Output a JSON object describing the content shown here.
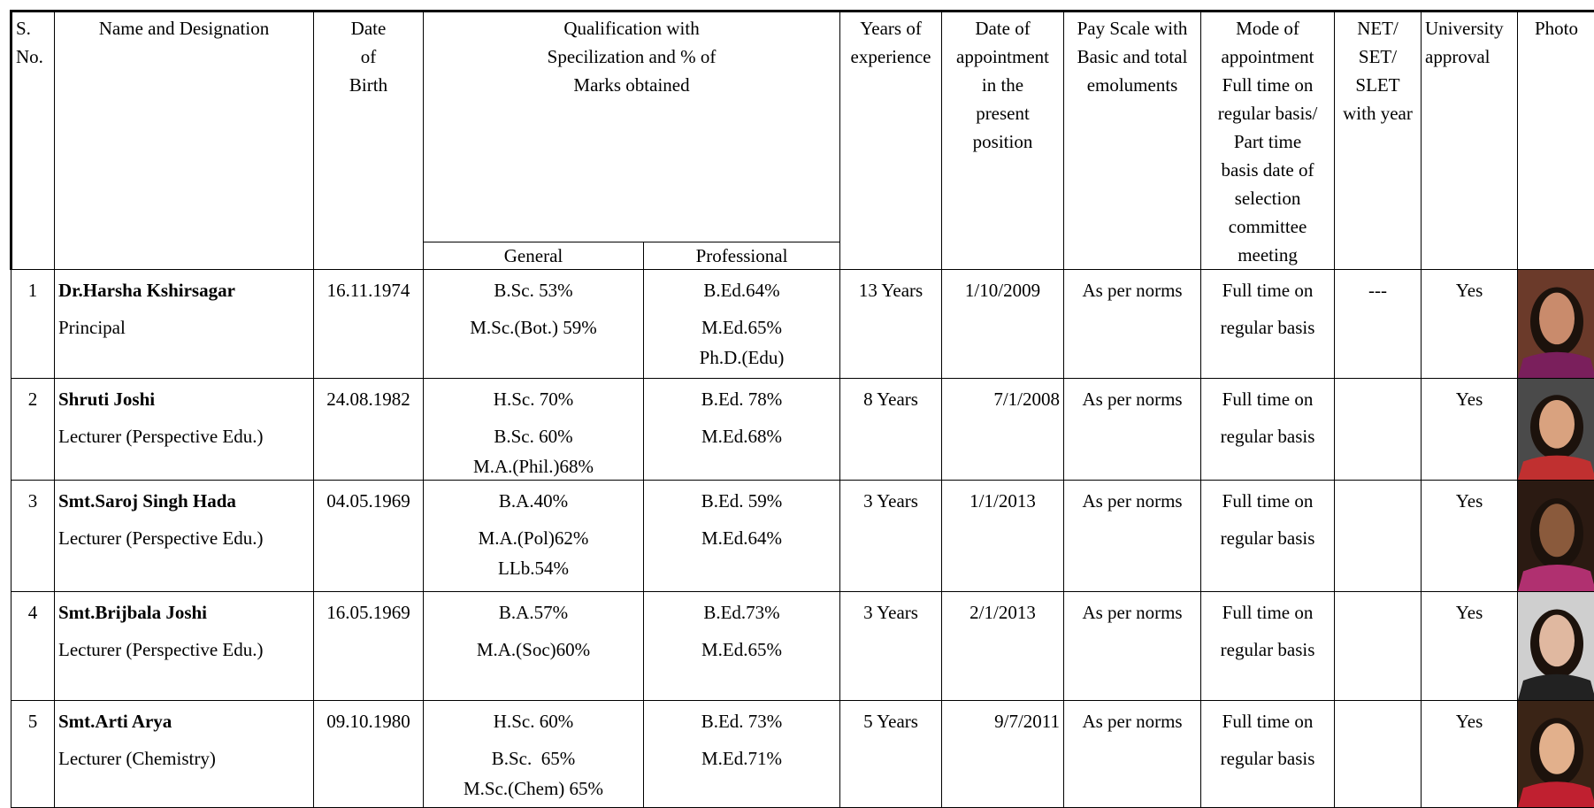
{
  "table": {
    "headers": [
      [
        "S.",
        "No."
      ],
      [
        "Name and Designation"
      ],
      [
        "Date",
        "of",
        "Birth"
      ],
      [
        "Qualification with",
        "Specilization and % of",
        "Marks obtained"
      ],
      [
        "Years of",
        "experience"
      ],
      [
        "Date of",
        "appointment",
        "in the",
        "present",
        "position"
      ],
      [
        "Pay Scale with",
        "Basic and total",
        "emoluments"
      ],
      [
        "Mode of",
        "appointment",
        "Full time on",
        "regular basis/",
        "Part time",
        "basis date of",
        "selection",
        "committee",
        "meeting"
      ],
      [
        "NET/",
        "SET/",
        "SLET",
        "with year"
      ],
      [
        "University",
        "approval"
      ],
      [
        "Photo"
      ]
    ],
    "qualification_subheaders": [
      "General",
      "Professional"
    ],
    "rows": [
      {
        "sno": "1",
        "name": "Dr.Harsha Kshirsagar",
        "designation": "Principal",
        "dob": "16.11.1974",
        "general": [
          "B.Sc. 53%",
          "M.Sc.(Bot.) 59%"
        ],
        "professional": [
          "B.Ed.64%",
          "M.Ed.65%",
          "Ph.D.(Edu)"
        ],
        "experience": "13 Years",
        "appointment_date": "1/10/2009",
        "pay_scale": "As per norms",
        "mode": [
          "Full time on",
          "regular basis"
        ],
        "net": "---",
        "approval": "Yes"
      },
      {
        "sno": "2",
        "name": "Shruti Joshi",
        "designation": "Lecturer (Perspective Edu.)",
        "dob": "24.08.1982",
        "general": [
          "H.Sc. 70%",
          "B.Sc. 60%",
          "M.A.(Phil.)68%"
        ],
        "professional": [
          "B.Ed. 78%",
          "M.Ed.68%"
        ],
        "experience": "8 Years",
        "appointment_date": "7/1/2008",
        "pay_scale": "As per norms",
        "mode": [
          "Full time on",
          "regular basis"
        ],
        "net": "",
        "approval": "Yes"
      },
      {
        "sno": "3",
        "name": "Smt.Saroj Singh Hada",
        "designation": "Lecturer (Perspective Edu.)",
        "dob": "04.05.1969",
        "general": [
          "B.A.40%",
          "M.A.(Pol)62%",
          "LLb.54%"
        ],
        "professional": [
          "B.Ed. 59%",
          "M.Ed.64%"
        ],
        "experience": "3 Years",
        "appointment_date": "1/1/2013",
        "pay_scale": "As per norms",
        "mode": [
          "Full time on",
          "regular basis"
        ],
        "net": "",
        "approval": "Yes"
      },
      {
        "sno": "4",
        "name": "Smt.Brijbala Joshi",
        "designation": "Lecturer (Perspective Edu.)",
        "dob": "16.05.1969",
        "general": [
          "B.A.57%",
          "M.A.(Soc)60%"
        ],
        "professional": [
          "B.Ed.73%",
          "M.Ed.65%"
        ],
        "experience": "3 Years",
        "appointment_date": "2/1/2013",
        "pay_scale": "As per norms",
        "mode": [
          "Full time on",
          "regular basis"
        ],
        "net": "",
        "approval": "Yes"
      },
      {
        "sno": "5",
        "name": "Smt.Arti Arya",
        "designation": "Lecturer (Chemistry)",
        "dob": "09.10.1980",
        "general": [
          "H.Sc. 60%",
          "B.Sc.  65%",
          "M.Sc.(Chem) 65%"
        ],
        "professional": [
          "B.Ed. 73%",
          "M.Ed.71%"
        ],
        "experience": "5 Years",
        "appointment_date": "9/7/2011",
        "pay_scale": "As per norms",
        "mode": [
          "Full time on",
          "regular basis"
        ],
        "net": "",
        "approval": "Yes"
      }
    ]
  }
}
